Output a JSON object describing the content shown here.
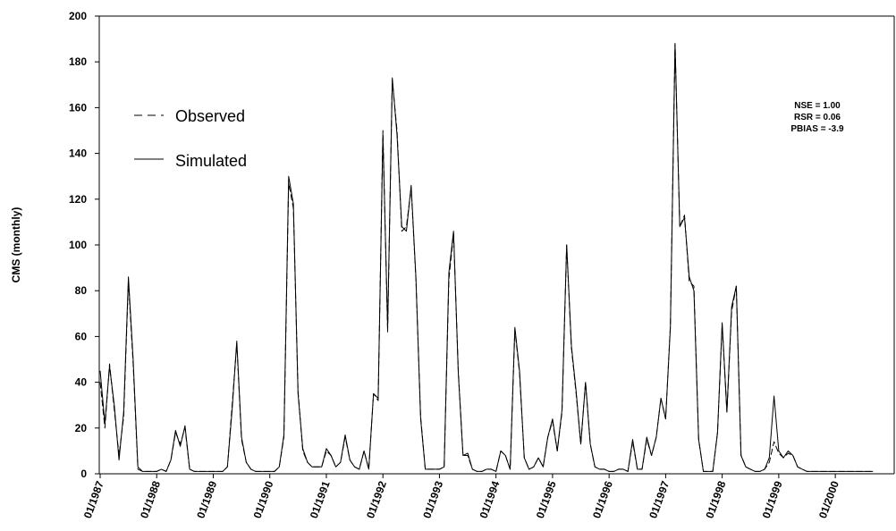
{
  "chart_data": {
    "type": "line",
    "title": "",
    "xlabel": "",
    "ylabel": "CMS (monthly)",
    "ylim": [
      0,
      200
    ],
    "yticks": [
      "0",
      "20",
      "40",
      "60",
      "80",
      "100",
      "120",
      "140",
      "160",
      "180",
      "200"
    ],
    "xticks": [
      "01/1987",
      "01/1988",
      "01/1989",
      "01/1990",
      "01/1991",
      "01/1992",
      "01/1993",
      "01/1994",
      "01/1995",
      "01/1996",
      "01/1997",
      "01/1998",
      "01/1999",
      "01/2000"
    ],
    "x_start": "01/1987",
    "x_step": "monthly",
    "grid": false,
    "legend_position": "top-left",
    "annotations": [
      "NSE = 1.00",
      "RSR = 0.06",
      "PBIAS = -3.9"
    ],
    "series": [
      {
        "name": "Observed",
        "style": "dashed",
        "values": [
          40,
          20,
          48,
          28,
          8,
          25,
          84,
          48,
          2,
          1,
          1,
          1,
          1,
          2,
          1,
          6,
          18,
          13,
          20,
          2,
          1,
          1,
          1,
          1,
          1,
          1,
          1,
          3,
          30,
          57,
          15,
          5,
          2,
          1,
          1,
          1,
          1,
          1,
          3,
          16,
          127,
          116,
          36,
          10,
          5,
          3,
          3,
          3,
          10,
          8,
          3,
          5,
          16,
          6,
          3,
          2,
          10,
          2,
          35,
          32,
          150,
          62,
          172,
          150,
          106,
          108,
          125,
          85,
          25,
          2,
          2,
          2,
          2,
          3,
          85,
          105,
          45,
          8,
          8,
          2,
          1,
          1,
          2,
          2,
          1,
          10,
          8,
          2,
          63,
          44,
          7,
          2,
          3,
          7,
          3,
          16,
          23,
          10,
          27,
          100,
          55,
          35,
          13,
          40,
          13,
          3,
          2,
          2,
          1,
          1,
          2,
          2,
          1,
          14,
          2,
          2,
          15,
          8,
          16,
          33,
          24,
          65,
          188,
          108,
          113,
          84,
          82,
          15,
          1,
          1,
          1,
          18,
          65,
          27,
          71,
          82,
          8,
          3,
          2,
          1,
          1,
          2,
          5,
          14,
          9,
          7,
          9,
          8,
          3,
          2,
          1,
          1,
          1,
          1,
          1,
          1,
          1,
          1,
          1,
          1,
          1,
          1,
          1,
          1,
          1
        ]
      },
      {
        "name": "Simulated",
        "style": "solid",
        "values": [
          45,
          22,
          47,
          30,
          6,
          27,
          86,
          50,
          3,
          1,
          1,
          1,
          1,
          2,
          1,
          6,
          19,
          12,
          21,
          2,
          1,
          1,
          1,
          1,
          1,
          1,
          1,
          3,
          28,
          58,
          16,
          5,
          2,
          1,
          1,
          1,
          1,
          1,
          3,
          17,
          130,
          118,
          35,
          11,
          5,
          3,
          3,
          3,
          11,
          8,
          3,
          5,
          17,
          6,
          3,
          2,
          10,
          2,
          35,
          33,
          148,
          64,
          173,
          148,
          108,
          106,
          126,
          86,
          24,
          2,
          2,
          2,
          2,
          3,
          88,
          106,
          44,
          8,
          9,
          2,
          1,
          1,
          2,
          2,
          1,
          10,
          8,
          2,
          64,
          45,
          7,
          2,
          3,
          7,
          3,
          16,
          24,
          10,
          28,
          100,
          56,
          36,
          13,
          40,
          13,
          3,
          2,
          2,
          1,
          1,
          2,
          2,
          1,
          15,
          2,
          2,
          16,
          8,
          16,
          33,
          24,
          64,
          188,
          108,
          112,
          86,
          80,
          15,
          1,
          1,
          1,
          18,
          66,
          27,
          73,
          82,
          8,
          3,
          2,
          1,
          1,
          2,
          7,
          34,
          10,
          7,
          10,
          8,
          3,
          2,
          1,
          1,
          1,
          1,
          1,
          1,
          1,
          1,
          1,
          1,
          1,
          1,
          1,
          1,
          1
        ]
      }
    ]
  }
}
